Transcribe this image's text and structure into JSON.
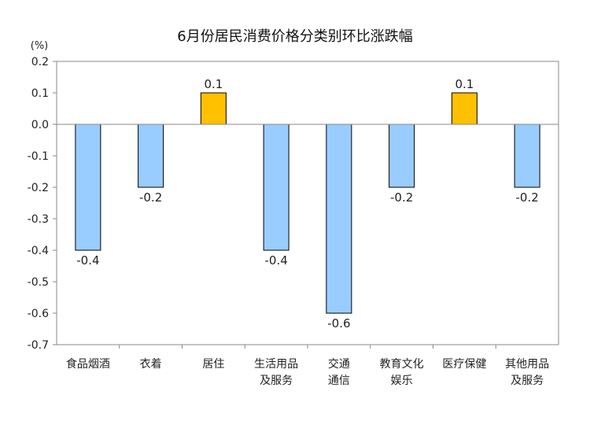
{
  "chart_data": {
    "type": "bar",
    "title": "6月份居民消费价格分类别环比涨跌幅",
    "unit_label": "(%)",
    "ylim": [
      -0.7,
      0.2
    ],
    "yticks": [
      "0.2",
      "0.1",
      "0.0",
      "-0.1",
      "-0.2",
      "-0.3",
      "-0.4",
      "-0.5",
      "-0.6",
      "-0.7"
    ],
    "ytick_values": [
      0.2,
      0.1,
      0.0,
      -0.1,
      -0.2,
      -0.3,
      -0.4,
      -0.5,
      -0.6,
      -0.7
    ],
    "grid": false,
    "categories": [
      [
        "食品烟酒"
      ],
      [
        "衣着"
      ],
      [
        "居住"
      ],
      [
        "生活用品",
        "及服务"
      ],
      [
        "交通",
        "通信"
      ],
      [
        "教育文化",
        "娱乐"
      ],
      [
        "医疗保健"
      ],
      [
        "其他用品",
        "及服务"
      ]
    ],
    "values": [
      -0.4,
      -0.2,
      0.1,
      -0.4,
      -0.6,
      -0.2,
      0.1,
      -0.2
    ],
    "labels": [
      "-0.4",
      "-0.2",
      "0.1",
      "-0.4",
      "-0.6",
      "-0.2",
      "0.1",
      "-0.2"
    ],
    "colors": {
      "positive": "#FFC000",
      "negative": "#99CCFF",
      "border": "#000000"
    }
  }
}
